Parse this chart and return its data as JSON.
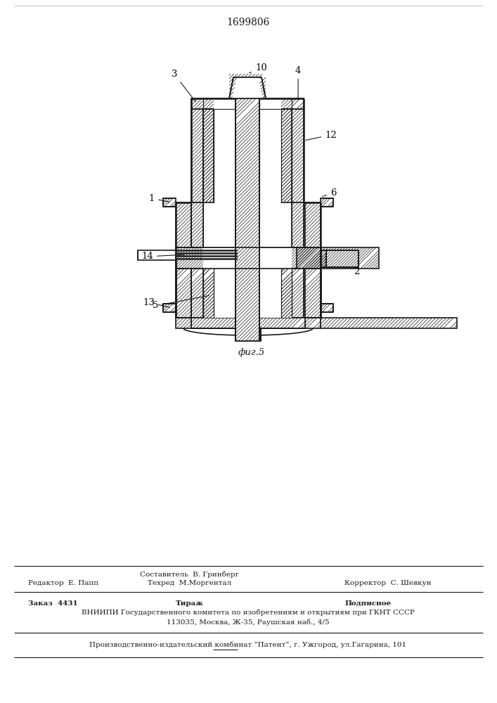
{
  "patent_number": "1699806",
  "fig_label": "фиг.5",
  "bg_color": "#ffffff",
  "line_color": "#1a1a1a",
  "footer": {
    "col1_label": "Редактор  Е. Папп",
    "col2_line1": "Составитель  В. Гринберг",
    "col2_line2": "Техред  М.Моргентал",
    "col3_label": "Корректор  С. Шевкун",
    "order_label": "Заказ  4431",
    "tirazh_label": "Тираж",
    "podpisnoe_label": "Подписное",
    "vnipi_line1": "ВНИИПИ Государственного комитета по изобретениям и открытиям при ГКНТ СССР",
    "vnipi_line2": "113035, Москва, Ж-35, Раушская наб., 4/5",
    "patent_line": "Производственно-издательский комбинат “Патент”, г. Ужгород, ул.Гагарина, 101"
  }
}
